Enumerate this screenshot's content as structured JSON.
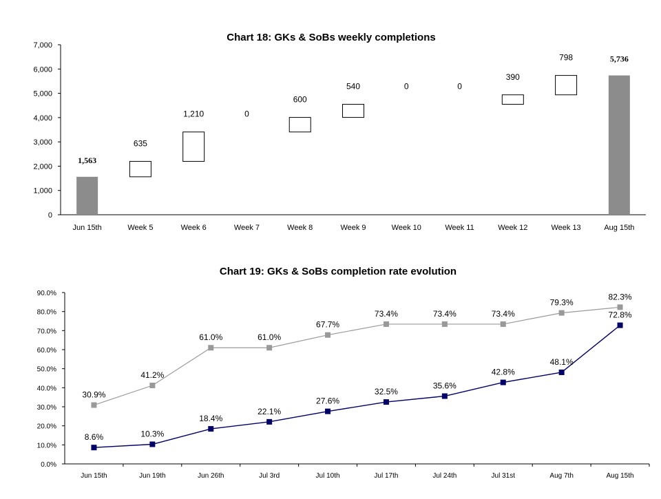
{
  "chart_data": [
    {
      "type": "bar",
      "subtype": "waterfall",
      "title": "Chart 18: GKs & SoBs weekly completions",
      "categories": [
        "Jun 15th",
        "Week 5",
        "Week 6",
        "Week 7",
        "Week 8",
        "Week 9",
        "Week 10",
        "Week 11",
        "Week 12",
        "Week 13",
        "Aug 15th"
      ],
      "values": [
        1563,
        635,
        1210,
        0,
        600,
        540,
        0,
        0,
        390,
        798,
        5736
      ],
      "labels": [
        "1,563",
        "635",
        "1,210",
        "0",
        "600",
        "540",
        "0",
        "0",
        "390",
        "798",
        "5,736"
      ],
      "totals": [
        true,
        false,
        false,
        false,
        false,
        false,
        false,
        false,
        false,
        false,
        true
      ],
      "ylim": [
        0,
        7000
      ],
      "yticks": [
        0,
        1000,
        2000,
        3000,
        4000,
        5000,
        6000,
        7000
      ],
      "ytick_labels": [
        "0",
        "1,000",
        "2,000",
        "3,000",
        "4,000",
        "5,000",
        "6,000",
        "7,000"
      ],
      "xlabel": "",
      "ylabel": "",
      "grid": false,
      "colors": {
        "total": "#8c8c8c",
        "step_fill": "#ffffff",
        "step_stroke": "#000000"
      }
    },
    {
      "type": "line",
      "title": "Chart 19: GKs & SoBs completion rate evolution",
      "categories": [
        "Jun 15th",
        "Jun 19th",
        "Jun 26th",
        "Jul 3rd",
        "Jul 10th",
        "Jul 17th",
        "Jul 24th",
        "Jul 31st",
        "Aug 7th",
        "Aug 15th"
      ],
      "series": [
        {
          "values": [
            30.9,
            41.2,
            61.0,
            61.0,
            67.7,
            73.4,
            73.4,
            73.4,
            79.3,
            82.3
          ],
          "labels": [
            "30.9%",
            "41.2%",
            "61.0%",
            "61.0%",
            "67.7%",
            "73.4%",
            "73.4%",
            "73.4%",
            "79.3%",
            "82.3%"
          ],
          "color": "#999999"
        },
        {
          "values": [
            8.6,
            10.3,
            18.4,
            22.1,
            27.6,
            32.5,
            35.6,
            42.8,
            48.1,
            72.8
          ],
          "labels": [
            "8.6%",
            "10.3%",
            "18.4%",
            "22.1%",
            "27.6%",
            "32.5%",
            "35.6%",
            "42.8%",
            "48.1%",
            "72.8%"
          ],
          "color": "#000066"
        }
      ],
      "ylim": [
        0,
        90
      ],
      "yticks": [
        0,
        10,
        20,
        30,
        40,
        50,
        60,
        70,
        80,
        90
      ],
      "ytick_labels": [
        "0.0%",
        "10.0%",
        "20.0%",
        "30.0%",
        "40.0%",
        "50.0%",
        "60.0%",
        "70.0%",
        "80.0%",
        "90.0%"
      ],
      "xlabel": "",
      "ylabel": "",
      "grid": false,
      "legend": "none"
    }
  ]
}
